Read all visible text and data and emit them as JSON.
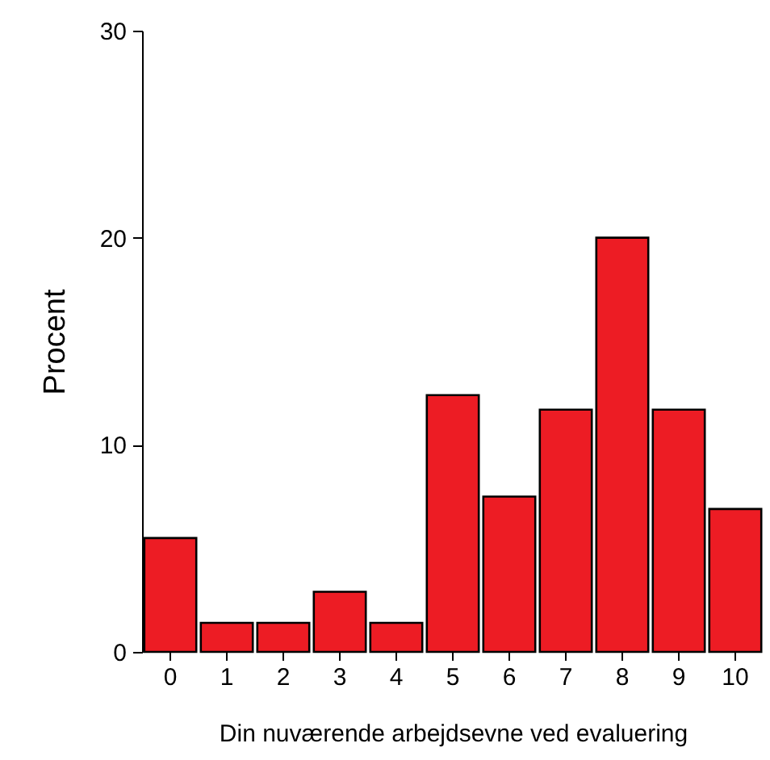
{
  "chart_data": {
    "type": "bar",
    "xlabel": "Din nuværende arbejdsevne ved evaluering",
    "ylabel": "Procent",
    "categories": [
      "0",
      "1",
      "2",
      "3",
      "4",
      "5",
      "6",
      "7",
      "8",
      "9",
      "10"
    ],
    "values": [
      5.5,
      1.4,
      1.4,
      2.9,
      1.4,
      12.4,
      7.5,
      11.7,
      20,
      11.7,
      6.9
    ],
    "color": "#ed1c24",
    "ylim": [
      0,
      30
    ],
    "yticks": [
      0,
      10,
      20,
      30
    ],
    "grid": false
  }
}
